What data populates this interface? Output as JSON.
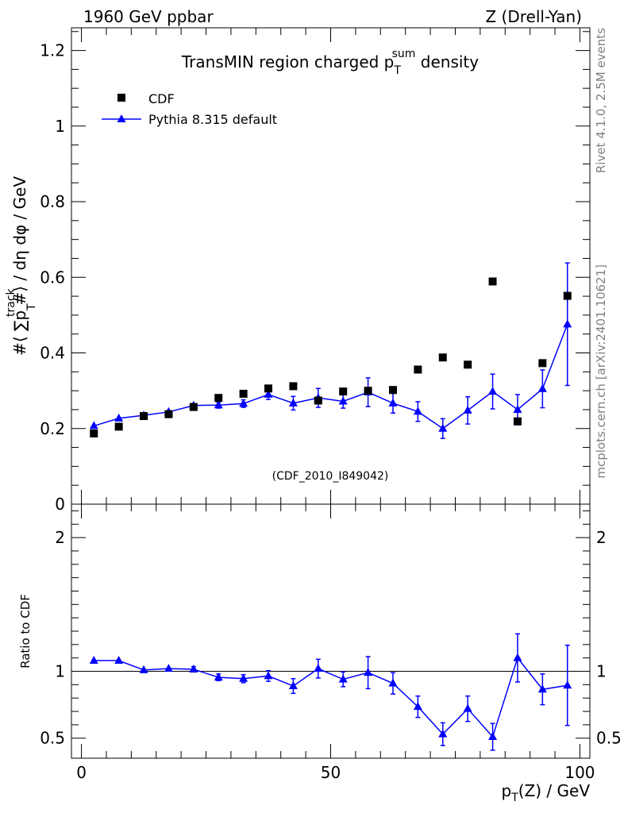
{
  "header": {
    "left_label": "1960 GeV ppbar",
    "right_label": "Z (Drell-Yan)"
  },
  "side_labels": {
    "rivet": "Rivet 4.1.0,  2.5M events",
    "mcplots": "mcplots.cern.ch [arXiv:2401.10621]"
  },
  "chart_data": [
    {
      "type": "scatter",
      "panel": "main",
      "title_main": "TransMIN region charged p",
      "title_sub": "T",
      "title_sup": "sum",
      "title_end": " density",
      "ylabel": "#⟨ ∑p  #⟩ / dη dφ / GeV",
      "ylabel_sup": "track",
      "ylabel_sub": "T",
      "watermark": "(CDF_2010_I849042)",
      "xlim": [
        -2,
        102
      ],
      "ylim": [
        0,
        1.26
      ],
      "yticks": [
        0,
        0.2,
        0.4,
        0.6,
        0.8,
        1,
        1.2
      ],
      "ytick_labels": [
        "0",
        "0.2",
        "0.4",
        "0.6",
        "0.8",
        "1",
        "1.2"
      ],
      "legend": [
        {
          "label": "CDF",
          "marker": "square",
          "color": "#000000"
        },
        {
          "label": "Pythia 8.315 default",
          "marker": "triangle",
          "color": "#0000ff"
        }
      ],
      "x": [
        2.5,
        7.5,
        12.5,
        17.5,
        22.5,
        27.5,
        32.5,
        37.5,
        42.5,
        47.5,
        52.5,
        57.5,
        62.5,
        67.5,
        72.5,
        77.5,
        82.5,
        87.5,
        92.5,
        97.5
      ],
      "series": [
        {
          "name": "CDF",
          "values": [
            0.187,
            0.205,
            0.233,
            0.238,
            0.257,
            0.281,
            0.292,
            0.306,
            0.312,
            0.274,
            0.298,
            0.3,
            0.302,
            0.356,
            0.388,
            0.369,
            0.589,
            0.219,
            0.373,
            0.551
          ]
        },
        {
          "name": "Pythia 8.315 default",
          "values": [
            0.207,
            0.227,
            0.235,
            0.244,
            0.261,
            0.262,
            0.266,
            0.29,
            0.267,
            0.281,
            0.272,
            0.296,
            0.267,
            0.245,
            0.2,
            0.248,
            0.298,
            0.25,
            0.305,
            0.476
          ],
          "errors": [
            0.004,
            0.004,
            0.005,
            0.006,
            0.006,
            0.008,
            0.01,
            0.013,
            0.018,
            0.025,
            0.018,
            0.038,
            0.026,
            0.026,
            0.026,
            0.036,
            0.046,
            0.04,
            0.05,
            0.162
          ]
        }
      ]
    },
    {
      "type": "line",
      "panel": "ratio",
      "ylabel": "Ratio to CDF",
      "xlabel": "p",
      "xlabel_sub": "T",
      "xlabel_end": "(Z) / GeV",
      "xlim": [
        -2,
        102
      ],
      "ylim": [
        0.35,
        2.25
      ],
      "yticks": [
        0.5,
        1,
        2
      ],
      "ytick_labels": [
        "0.5",
        "1",
        "2"
      ],
      "xticks": [
        0,
        50,
        100
      ],
      "xtick_labels": [
        "0",
        "50",
        "100"
      ],
      "reference": 1,
      "x": [
        2.5,
        7.5,
        12.5,
        17.5,
        22.5,
        27.5,
        32.5,
        37.5,
        42.5,
        47.5,
        52.5,
        57.5,
        62.5,
        67.5,
        72.5,
        77.5,
        82.5,
        87.5,
        92.5,
        97.5
      ],
      "series": [
        {
          "name": "Pythia 8.315 default",
          "values": [
            1.08,
            1.08,
            1.01,
            1.02,
            1.015,
            0.955,
            0.945,
            0.965,
            0.89,
            1.02,
            0.94,
            0.99,
            0.91,
            0.735,
            0.53,
            0.72,
            0.51,
            1.1,
            0.865,
            0.895
          ],
          "errors": [
            0.005,
            0.005,
            0.01,
            0.015,
            0.02,
            0.025,
            0.03,
            0.04,
            0.055,
            0.07,
            0.055,
            0.12,
            0.08,
            0.08,
            0.085,
            0.095,
            0.1,
            0.18,
            0.115,
            0.3
          ]
        }
      ]
    }
  ]
}
